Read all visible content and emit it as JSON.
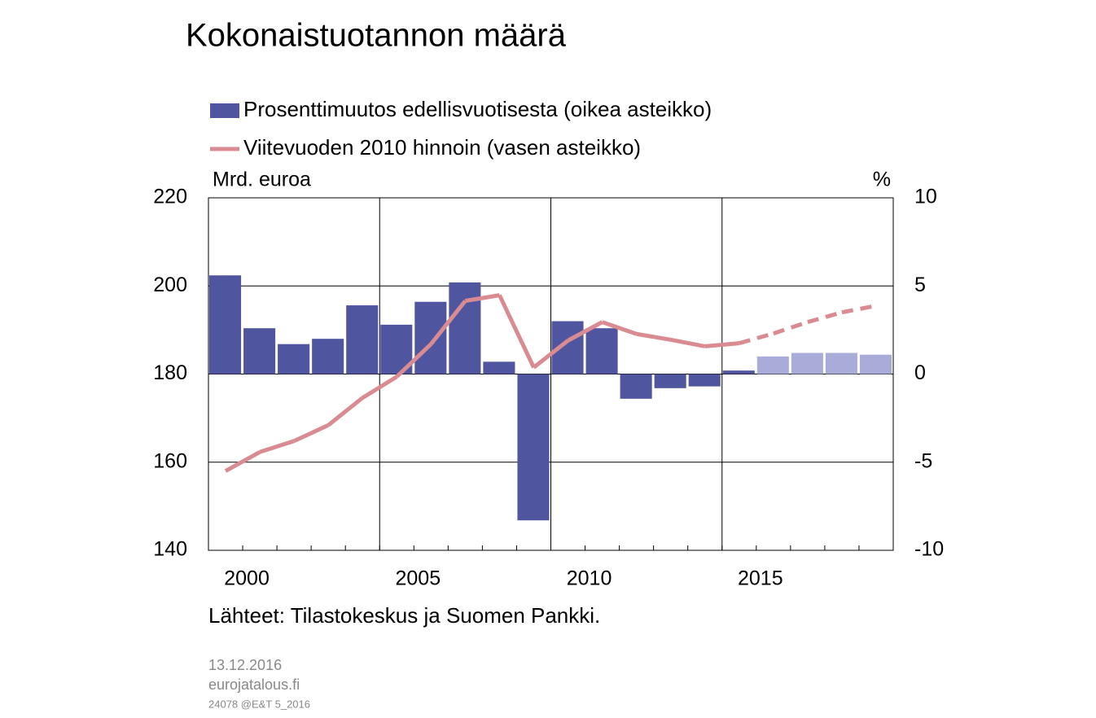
{
  "chart_data": {
    "type": "bar_line",
    "title": "Kokonaistuotannon määrä",
    "y_label": "Mrd. euroa",
    "y2_label": "%",
    "source": "Lähteet: Tilastokeskus ja Suomen Pankki.",
    "date": "13.12.2016",
    "site": "eurojatalous.fi",
    "code": "24078 @E&T 5_2016",
    "categories": [
      "2000",
      null,
      null,
      null,
      null,
      "2005",
      null,
      null,
      null,
      null,
      "2010",
      null,
      null,
      null,
      null,
      "2015",
      null,
      null,
      null,
      null
    ],
    "ylim": [
      140,
      220
    ],
    "yticks": [
      140,
      160,
      180,
      200,
      220
    ],
    "y2lim": [
      -10,
      10
    ],
    "y2ticks": [
      -10,
      -5,
      0,
      5,
      10
    ],
    "grid": true,
    "series": [
      {
        "name": "Prosenttimuutos edellisvuotisesta (oikea asteikko)",
        "type": "bar",
        "axis": "y2",
        "color": "#5055a0",
        "bar_colors": [
          "#5055a0",
          "#5055a0",
          "#5055a0",
          "#5055a0",
          "#5055a0",
          "#5055a0",
          "#5055a0",
          "#5055a0",
          "#5055a0",
          "#5055a0",
          "#5055a0",
          "#5055a0",
          "#5055a0",
          "#5055a0",
          "#5055a0",
          "#5055a0",
          "#a9abd9",
          "#a9abd9",
          "#a9abd9",
          "#a9abd9"
        ],
        "values": [
          5.6,
          2.6,
          1.7,
          2.0,
          3.9,
          2.8,
          4.1,
          5.2,
          0.7,
          -8.3,
          3.0,
          2.6,
          -1.4,
          -0.8,
          -0.7,
          0.2,
          1.0,
          1.2,
          1.2,
          1.1
        ]
      },
      {
        "name": "Viitevuoden 2010 hinnoin (vasen asteikko)",
        "type": "line",
        "color": "#d98b91",
        "dashed": [
          false,
          false,
          false,
          false,
          false,
          false,
          false,
          false,
          false,
          false,
          false,
          false,
          false,
          false,
          false,
          true,
          true,
          true,
          true,
          true
        ],
        "values": [
          158.0,
          162.3,
          164.8,
          168.4,
          174.6,
          179.4,
          186.8,
          196.6,
          197.9,
          181.5,
          187.6,
          191.8,
          189.1,
          187.8,
          186.3,
          187.0,
          189.2,
          191.8,
          194.0,
          195.5
        ]
      }
    ]
  }
}
